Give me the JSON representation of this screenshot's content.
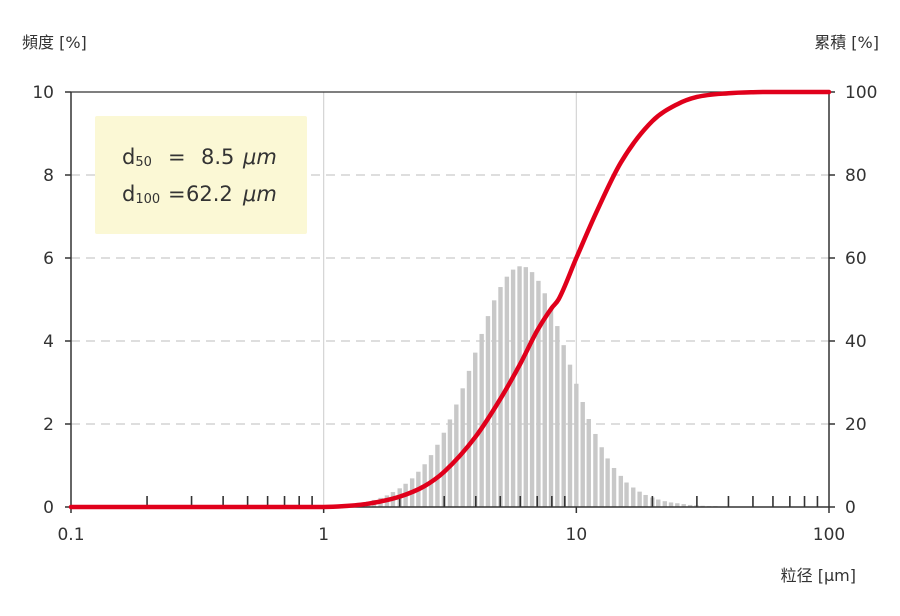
{
  "colors": {
    "curve": "#e0001b",
    "bars": "#c8c8c8",
    "grid": "#d4d4d4",
    "axis": "#333333",
    "box_fill": "#fbf8d5"
  },
  "annotation": {
    "d50_main": "d",
    "d50_sub": "50",
    "d50_eq": "=",
    "d50_value": "8.5",
    "d50_unit": "μm",
    "d100_main": "d",
    "d100_sub": "100",
    "d100_eq": "=",
    "d100_value": "62.2",
    "d100_unit": "μm"
  },
  "chart_data": {
    "type": "bar",
    "ylabel_left": "頻度 [%]",
    "ylabel_right": "累積 [%]",
    "xlabel": "粒径 [μm]",
    "x_scale": "log",
    "xlim": [
      0.1,
      100
    ],
    "ylim_left": [
      0,
      10
    ],
    "ylim_right": [
      0,
      100
    ],
    "x_ticks": [
      "0.1",
      "1",
      "10",
      "100"
    ],
    "y_ticks_left": [
      "0",
      "2",
      "4",
      "6",
      "8",
      "10"
    ],
    "y_ticks_right": [
      "0",
      "20",
      "40",
      "60",
      "80",
      "100"
    ],
    "grid": "dashed horizontal, solid vertical at decades",
    "series": [
      {
        "type": "bar",
        "x": [
          1.26,
          1.33,
          1.41,
          1.5,
          1.58,
          1.68,
          1.78,
          1.88,
          2.0,
          2.11,
          2.24,
          2.37,
          2.51,
          2.66,
          2.82,
          2.99,
          3.16,
          3.35,
          3.55,
          3.76,
          3.98,
          4.22,
          4.47,
          4.73,
          5.01,
          5.31,
          5.62,
          5.96,
          6.31,
          6.68,
          7.08,
          7.5,
          7.94,
          8.41,
          8.91,
          9.44,
          10.0,
          10.6,
          11.2,
          11.9,
          12.6,
          13.3,
          14.1,
          15.0,
          15.8,
          16.8,
          17.8,
          18.8,
          20.0,
          21.1,
          22.4,
          23.7,
          25.1,
          26.6,
          28.2,
          29.9,
          31.6,
          33.5,
          35.5,
          37.6,
          39.8,
          42.2,
          44.7,
          47.3
        ],
        "values": [
          0.05,
          0.07,
          0.1,
          0.13,
          0.17,
          0.22,
          0.28,
          0.36,
          0.45,
          0.56,
          0.69,
          0.85,
          1.03,
          1.25,
          1.5,
          1.79,
          2.11,
          2.47,
          2.86,
          3.28,
          3.72,
          4.17,
          4.6,
          4.98,
          5.3,
          5.55,
          5.72,
          5.8,
          5.78,
          5.66,
          5.45,
          5.15,
          4.78,
          4.36,
          3.9,
          3.43,
          2.97,
          2.53,
          2.12,
          1.76,
          1.44,
          1.17,
          0.94,
          0.75,
          0.59,
          0.47,
          0.37,
          0.29,
          0.23,
          0.18,
          0.14,
          0.11,
          0.09,
          0.07,
          0.05,
          0.04,
          0.03,
          0.02,
          0.02,
          0.01,
          0.01,
          0.01,
          0.01,
          0.01
        ]
      },
      {
        "type": "line",
        "axis": "right",
        "x": [
          0.1,
          1.0,
          1.2,
          1.5,
          2.0,
          2.5,
          3.0,
          4.0,
          5.0,
          6.0,
          7.0,
          8.0,
          8.5,
          10.0,
          12.0,
          15.0,
          20.0,
          25.0,
          30.0,
          40.0,
          50.0,
          62.2,
          100.0
        ],
        "values": [
          0,
          0,
          0.2,
          0.8,
          2.5,
          5.0,
          8.5,
          17.0,
          26.0,
          34.5,
          42.5,
          48.0,
          50.0,
          60.0,
          71.0,
          83.0,
          93.0,
          97.0,
          98.8,
          99.7,
          99.95,
          100,
          100
        ]
      }
    ],
    "minor_tick_marks": "short dark ticks along the baseline at 0.2–0.9, 2–9 and 20–90 μm"
  }
}
